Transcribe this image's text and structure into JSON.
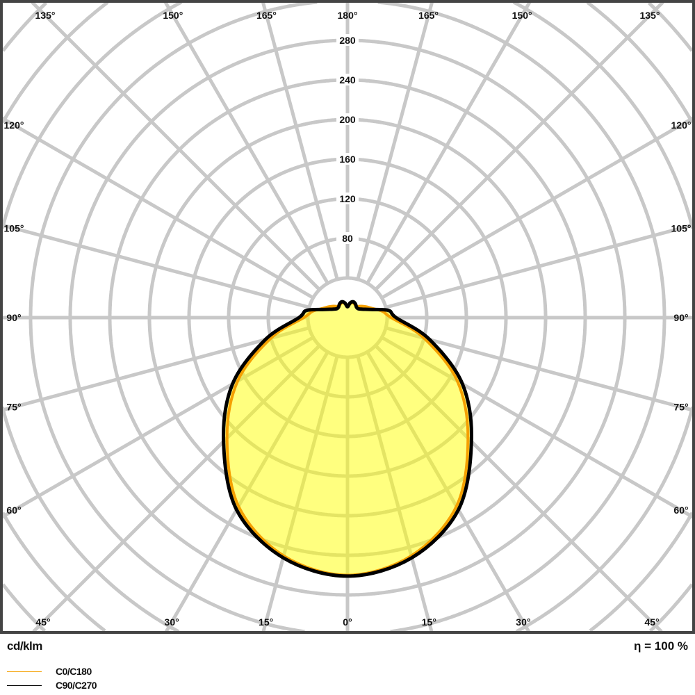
{
  "chart_data": {
    "type": "polar",
    "unit_label": "cd/klm",
    "efficiency_label": "η = 100 %",
    "radial_ticks": [
      80,
      120,
      160,
      200,
      240,
      280
    ],
    "radial_grid_step": 40,
    "angle_grid_step_deg": 15,
    "angle_labels_bottom": [
      "45°",
      "30°",
      "15°",
      "0°",
      "15°",
      "30°",
      "45°"
    ],
    "angle_labels_top": [
      "135°",
      "150°",
      "165°",
      "180°",
      "165°",
      "150°",
      "135°"
    ],
    "angle_labels_side": [
      "120°",
      "105°",
      "90°",
      "75°",
      "60°"
    ],
    "grid": true,
    "legend_placement": "bottom-left",
    "colors": {
      "grid": "#c8c8c8",
      "frame": "#444444",
      "fill": "#ffff00"
    },
    "series": [
      {
        "name": "C0/C180",
        "color": "#f5a000",
        "angles_deg": [
          0,
          15,
          30,
          45,
          60,
          75,
          90,
          100,
          110,
          120,
          130,
          140,
          150,
          160,
          170,
          180
        ],
        "values": [
          260,
          249,
          220,
          172,
          128,
          80,
          44,
          36,
          27,
          22,
          18,
          15,
          15,
          16,
          14,
          11
        ]
      },
      {
        "name": "C90/C270",
        "color": "#000000",
        "angles_deg": [
          0,
          15,
          30,
          45,
          60,
          75,
          90,
          100,
          110,
          120,
          130,
          140,
          150,
          160,
          170,
          180
        ],
        "values": [
          261,
          251,
          224,
          177,
          134,
          86,
          49,
          42,
          24,
          17,
          14,
          14,
          16,
          17,
          15,
          11
        ]
      }
    ]
  }
}
